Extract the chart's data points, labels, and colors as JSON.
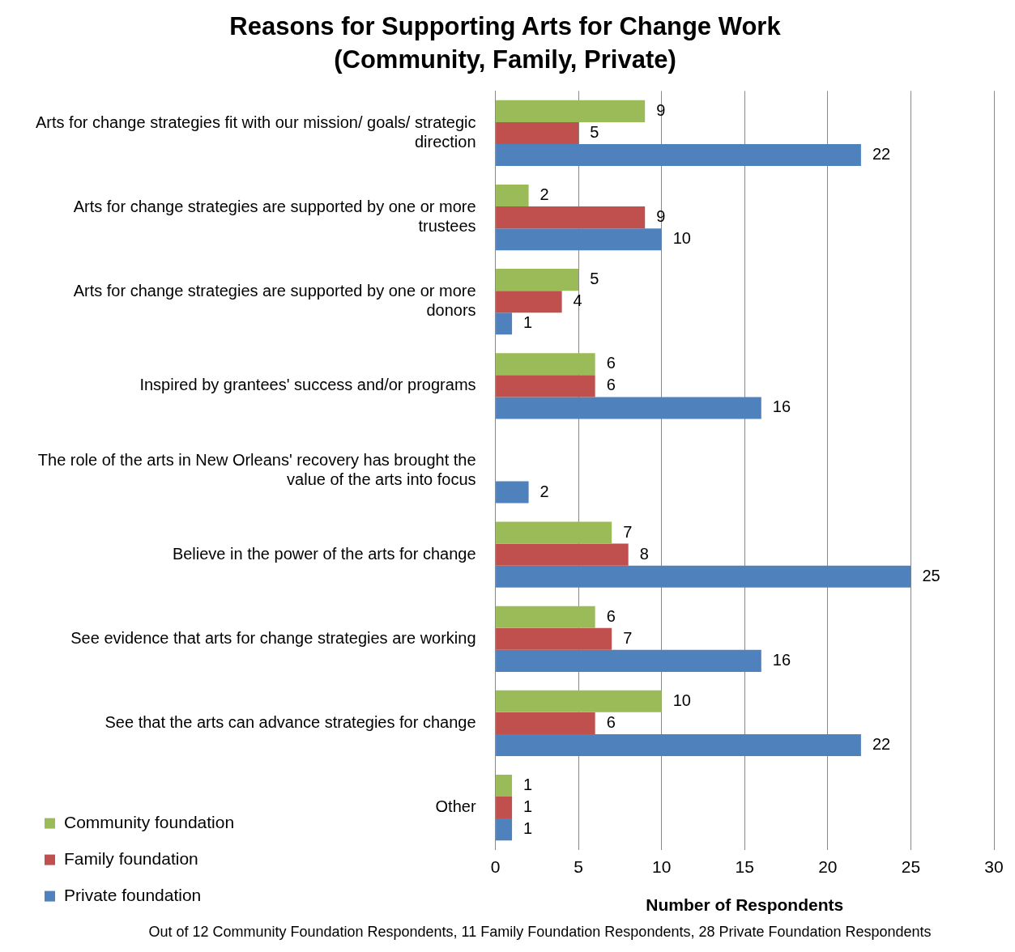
{
  "chart_data": {
    "type": "bar",
    "orientation": "horizontal",
    "title": "Reasons for Supporting Arts for Change Work",
    "subtitle": "(Community, Family, Private)",
    "categories": [
      "Arts for change strategies fit with our mission/ goals/ strategic direction",
      "Arts for change strategies are supported by one or more trustees",
      "Arts for change strategies are supported by one or more donors",
      "Inspired by grantees' success and/or programs",
      "The role of the arts in New Orleans' recovery has brought the value of the arts into focus",
      "Believe in the power of the arts for change",
      "See evidence that arts for change strategies are working",
      "See that the arts can advance strategies for change",
      "Other"
    ],
    "series": [
      {
        "name": "Community foundation",
        "color": "#9bbb59",
        "values": [
          9,
          2,
          5,
          6,
          null,
          7,
          6,
          10,
          1
        ]
      },
      {
        "name": "Family foundation",
        "color": "#c0504d",
        "values": [
          5,
          9,
          4,
          6,
          null,
          8,
          7,
          6,
          1
        ]
      },
      {
        "name": "Private foundation",
        "color": "#4f81bd",
        "values": [
          22,
          10,
          1,
          16,
          2,
          25,
          16,
          22,
          1
        ]
      }
    ],
    "xlim": [
      0,
      30
    ],
    "xticks": [
      0,
      5,
      10,
      15,
      20,
      25,
      30
    ],
    "xlabel": "Number of Respondents",
    "grid": "x",
    "legend": "bottom left",
    "data_labels": true,
    "annotations": [
      "Out of 12 Community Foundation Respondents, 11 Family Foundation Respondents, 28 Private Foundation Respondents"
    ]
  }
}
